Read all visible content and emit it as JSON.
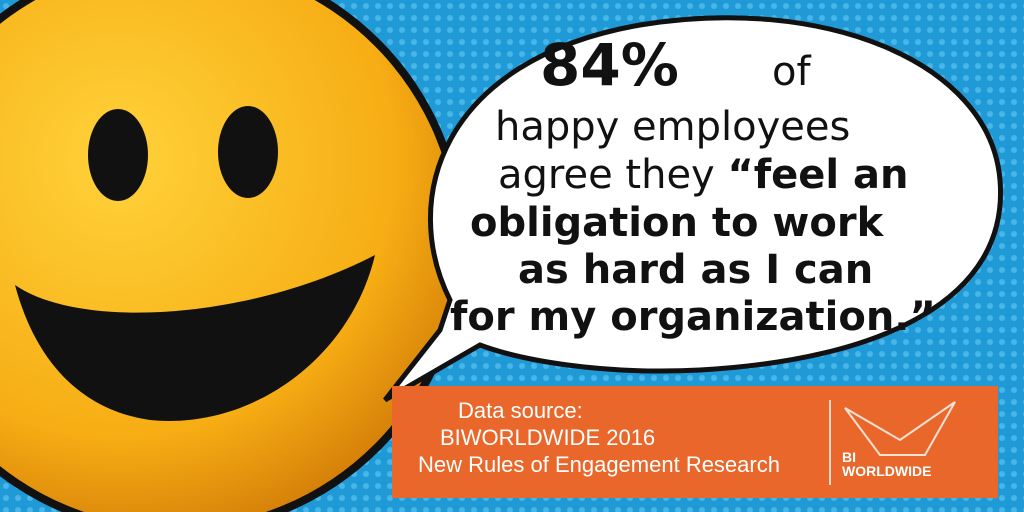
{
  "headline": {
    "stat": "84%",
    "stat_suffix": "of",
    "lines": [
      "happy employees",
      "agree they",
      "“feel an",
      "obligation to work",
      "as hard as I can",
      "for my organization.”"
    ]
  },
  "source": {
    "lines": [
      "Data source:",
      "BIWORLDWIDE 2016",
      "New Rules of Engagement Research"
    ]
  },
  "logo": {
    "line1": "BI",
    "line2": "WORLDWIDE"
  }
}
